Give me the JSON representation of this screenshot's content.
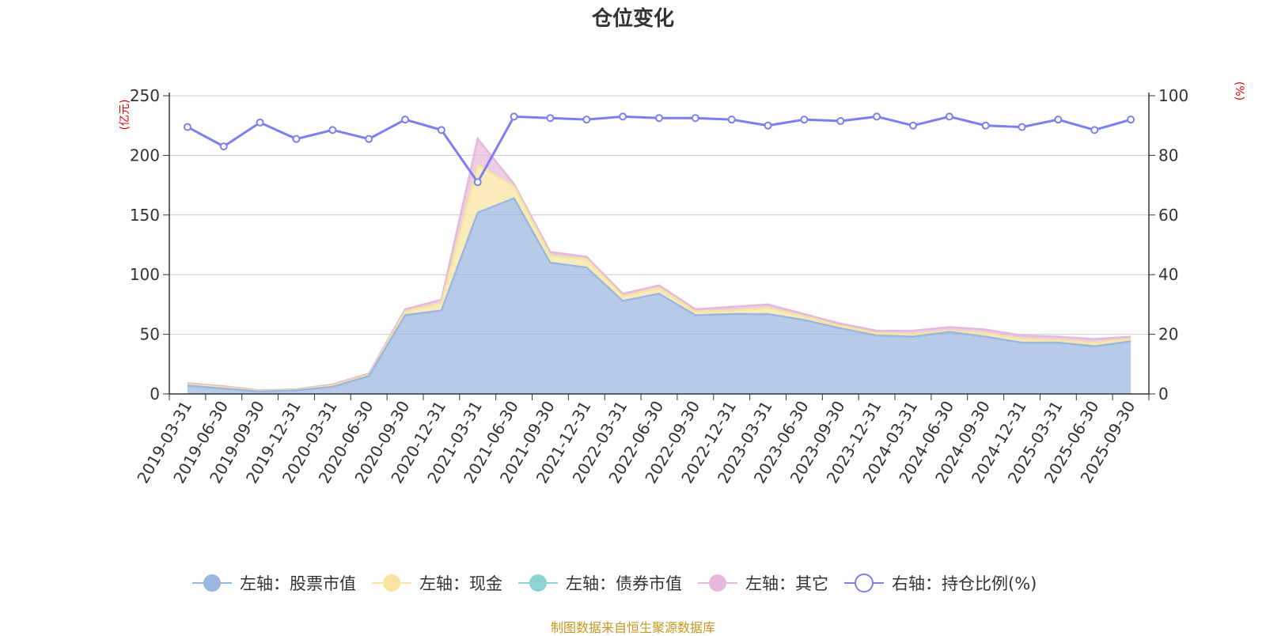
{
  "chart_data": {
    "type": "area",
    "title": "仓位变化",
    "left_unit": "(亿元)",
    "right_unit": "(%)",
    "left_axis": {
      "min": 0,
      "max": 250,
      "ticks": [
        "0",
        "50",
        "100",
        "150",
        "200",
        "250"
      ]
    },
    "right_axis": {
      "min": 0,
      "max": 100,
      "ticks": [
        "0",
        "20",
        "40",
        "60",
        "80",
        "100"
      ]
    },
    "categories": [
      "2019-03-31",
      "2019-06-30",
      "2019-09-30",
      "2019-12-31",
      "2020-03-31",
      "2020-06-30",
      "2020-09-30",
      "2020-12-31",
      "2021-03-31",
      "2021-06-30",
      "2021-09-30",
      "2021-12-31",
      "2022-03-31",
      "2022-06-30",
      "2022-09-30",
      "2022-12-31",
      "2023-03-31",
      "2023-06-30",
      "2023-09-30",
      "2023-12-31",
      "2024-03-31",
      "2024-06-30",
      "2024-09-30",
      "2024-12-31",
      "2025-03-31",
      "2025-06-30",
      "2025-09-30"
    ],
    "series": [
      {
        "name": "左轴：股票市值",
        "axis": "left",
        "stack": true,
        "color": "#9bb7e0",
        "values": [
          7,
          4.5,
          2,
          3,
          6,
          15,
          66,
          70,
          152,
          164,
          110,
          106,
          78,
          84,
          66,
          67,
          67,
          62,
          55,
          49,
          48,
          52,
          48,
          43,
          43,
          40,
          44
        ]
      },
      {
        "name": "左轴：现金",
        "axis": "left",
        "stack": true,
        "color": "#f7e4a0",
        "values": [
          1,
          1,
          0.5,
          0.5,
          1,
          1,
          3,
          6,
          40,
          10,
          6,
          7,
          4,
          5,
          3,
          3,
          5,
          3,
          2,
          2,
          2,
          1,
          3,
          3,
          2,
          3,
          2
        ]
      },
      {
        "name": "左轴：债券市值",
        "axis": "left",
        "stack": true,
        "color": "#8dd3d3",
        "values": [
          0,
          0,
          0,
          0,
          0,
          0,
          0,
          0,
          0,
          0,
          0,
          0,
          0,
          0,
          0,
          0,
          0,
          0,
          0,
          0,
          0,
          0,
          0,
          0,
          0,
          0,
          0
        ]
      },
      {
        "name": "左轴：其它",
        "axis": "left",
        "stack": true,
        "color": "#e6b8dc",
        "values": [
          1,
          1,
          0.5,
          0.5,
          1,
          1,
          2,
          3,
          22,
          2,
          3,
          2,
          2,
          2,
          2,
          3,
          3,
          2,
          2,
          2,
          3,
          3,
          3,
          3,
          3,
          3,
          2
        ]
      },
      {
        "name": "右轴：持仓比例(%)",
        "axis": "right",
        "type": "line",
        "color": "#7b7ff0",
        "values": [
          89.5,
          83,
          91,
          85.5,
          88.5,
          85.5,
          92,
          88.5,
          71,
          93,
          92.5,
          92,
          93,
          92.5,
          92.5,
          92,
          90,
          92,
          91.5,
          93,
          90,
          93,
          90,
          89.5,
          92,
          88.5,
          92
        ]
      }
    ],
    "legend": [
      {
        "label": "左轴：股票市值",
        "color": "#9bb7e0",
        "marker": "filled"
      },
      {
        "label": "左轴：现金",
        "color": "#f7e4a0",
        "marker": "filled"
      },
      {
        "label": "左轴：债券市值",
        "color": "#8dd3d3",
        "marker": "filled"
      },
      {
        "label": "左轴：其它",
        "color": "#e6b8dc",
        "marker": "filled"
      },
      {
        "label": "右轴：持仓比例(%)",
        "color": "#7b7ff0",
        "marker": "hollow"
      }
    ],
    "legend_position": "bottom",
    "grid": true
  },
  "footer": "制图数据来自恒生聚源数据库"
}
